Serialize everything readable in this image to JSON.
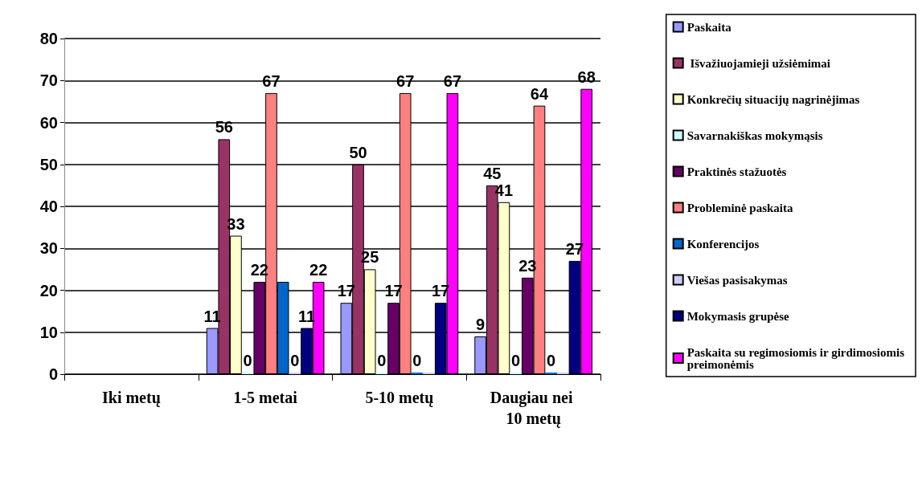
{
  "chart_data": {
    "type": "bar",
    "categories": [
      "Iki metų",
      "1-5 metai",
      "5-10 metų",
      "Daugiau nei 10 metų"
    ],
    "ylim": [
      0,
      80
    ],
    "yticks": [
      0,
      10,
      20,
      30,
      40,
      50,
      60,
      70,
      80
    ],
    "grid": "y",
    "legend": "right",
    "series": [
      {
        "name": "Paskaita",
        "color": "#9999ff",
        "values": [
          null,
          11,
          17,
          9
        ],
        "value_labels": [
          null,
          "11",
          "17",
          "9"
        ]
      },
      {
        "name": " Išvažiuojamieji užsiėmimai",
        "color": "#993366",
        "values": [
          null,
          56,
          50,
          45
        ],
        "value_labels": [
          null,
          "56",
          "50",
          "45"
        ]
      },
      {
        "name": "Konkrečių situacijų nagrinėjimas",
        "color": "#ffffcc",
        "values": [
          null,
          33,
          25,
          41
        ],
        "value_labels": [
          null,
          "33",
          "25",
          "41"
        ]
      },
      {
        "name": "Savarnakiškas mokymąsis",
        "color": "#ccffff",
        "values": [
          null,
          0,
          0,
          0
        ],
        "value_labels": [
          null,
          "0",
          "0",
          "0"
        ]
      },
      {
        "name": "Praktinės stažuotės",
        "color": "#660066",
        "values": [
          null,
          22,
          17,
          23
        ],
        "value_labels": [
          null,
          "22",
          "17",
          "23"
        ]
      },
      {
        "name": "Probleminė paskaita",
        "color": "#ff8080",
        "values": [
          null,
          67,
          67,
          64
        ],
        "value_labels": [
          null,
          "67",
          "67",
          "64"
        ]
      },
      {
        "name": "Konferencijos",
        "color": "#0066cc",
        "values": [
          null,
          22,
          0,
          0
        ],
        "value_labels": [
          null,
          null,
          "0",
          "0"
        ]
      },
      {
        "name": "Viešas pasisakymas",
        "color": "#ccccff",
        "values": [
          null,
          0,
          0,
          0
        ],
        "value_labels": [
          null,
          "0",
          null,
          null
        ]
      },
      {
        "name": "Mokymasis grupėse",
        "color": "#000080",
        "values": [
          null,
          11,
          17,
          27
        ],
        "value_labels": [
          null,
          "11",
          "17",
          "27"
        ]
      },
      {
        "name": "Paskaita su regimosiomis ir girdimosiomis preimonėmis",
        "color": "#ff00ff",
        "values": [
          null,
          22,
          67,
          68
        ],
        "value_labels": [
          null,
          "22",
          "67",
          "68"
        ]
      }
    ]
  }
}
